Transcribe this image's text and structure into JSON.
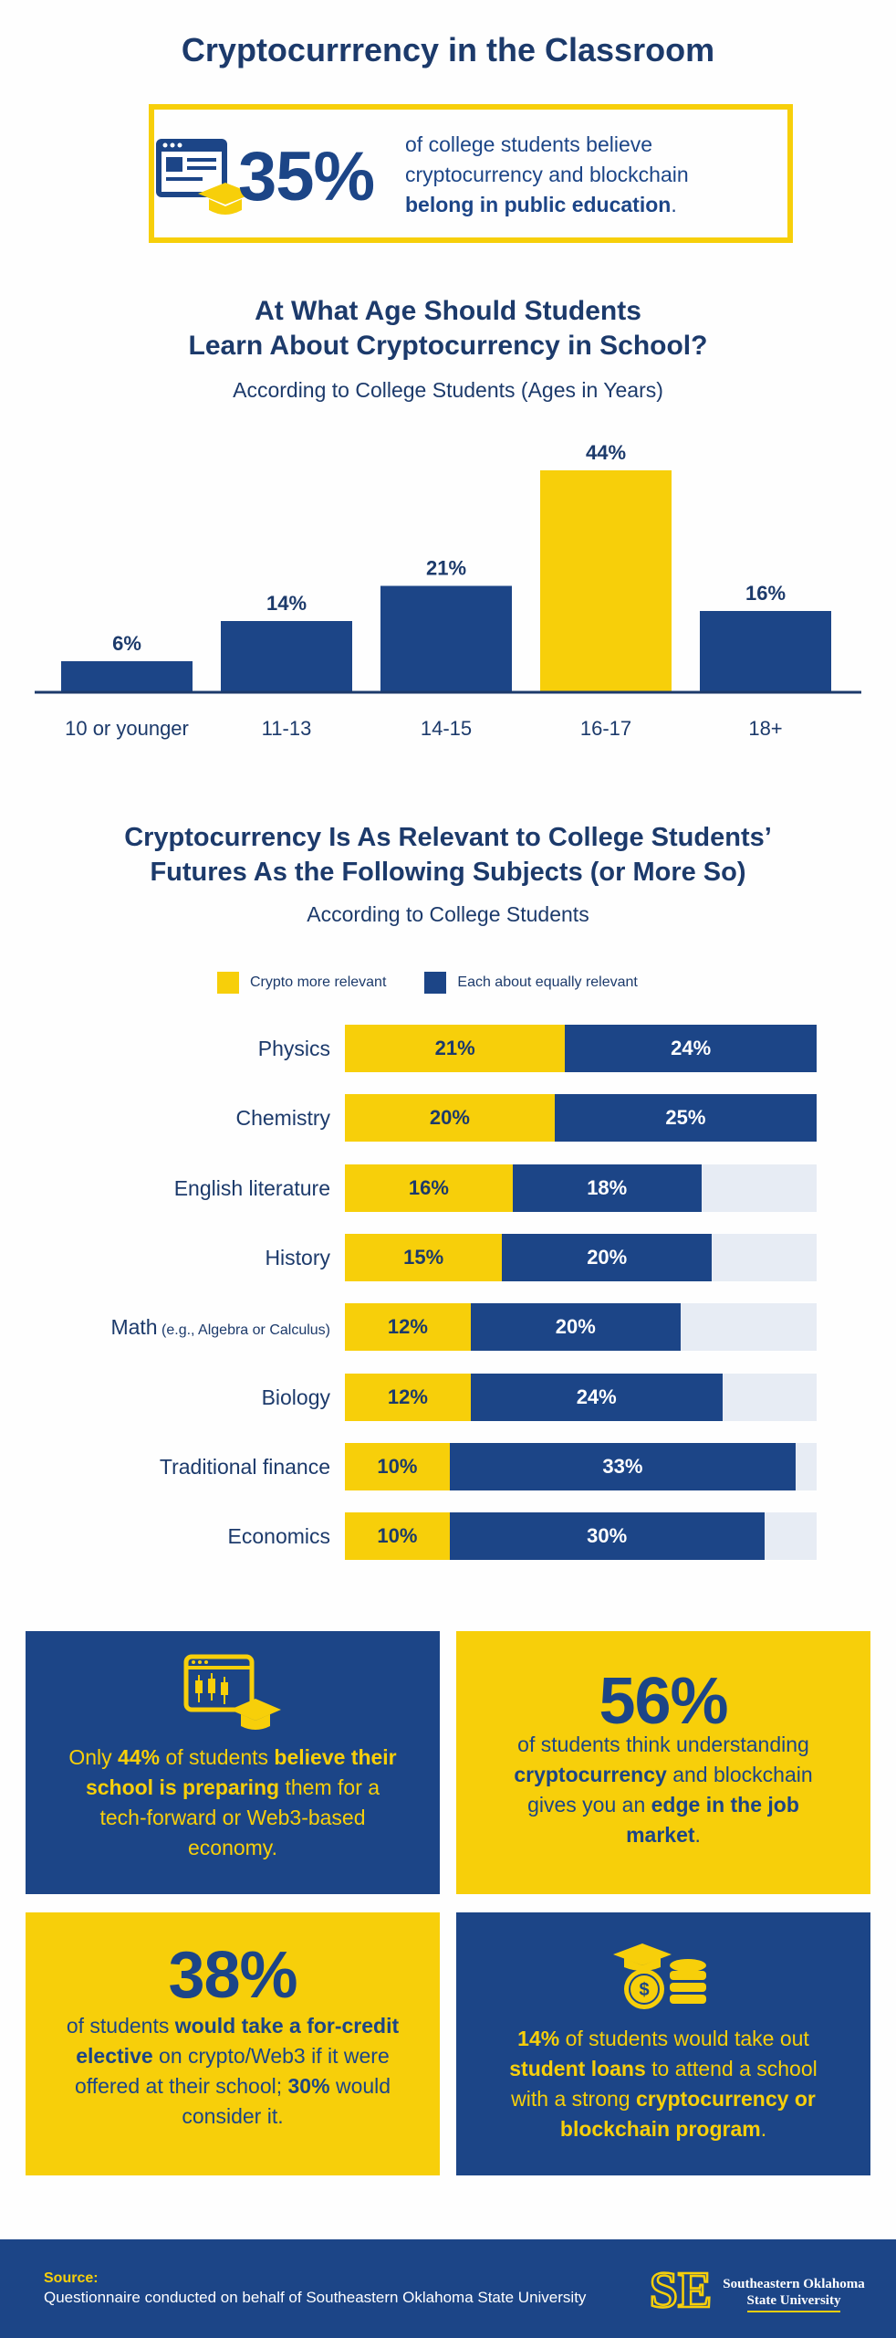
{
  "title": "Cryptocurrrency in the Classroom",
  "stat": {
    "percent": "35%",
    "text_pre": "of college students believe cryptocurrency and blockchain ",
    "text_bold": "belong in public education",
    "text_post": "."
  },
  "colors": {
    "navy": "#1c4587",
    "yellow": "#f7cf0a",
    "track": "#e7ecf4"
  },
  "chart_data": [
    {
      "type": "bar",
      "title_line1": "At What Age Should Students",
      "title_line2": "Learn About Cryptocurrency in School?",
      "subtitle": "According to College Students (Ages in Years)",
      "categories": [
        "10 or younger",
        "11-13",
        "14-15",
        "16-17",
        "18+"
      ],
      "values": [
        6,
        14,
        21,
        44,
        16
      ],
      "labels": [
        "6%",
        "14%",
        "21%",
        "44%",
        "16%"
      ],
      "highlight_index": 3,
      "ylim": [
        0,
        44
      ]
    },
    {
      "type": "bar",
      "orientation": "horizontal-stacked",
      "title_line1": "Cryptocurrency Is As Relevant to College Students’",
      "title_line2": "Futures As the Following Subjects (or More So)",
      "subtitle": "According to College Students",
      "legend": [
        "Crypto more relevant",
        "Each about equally relevant"
      ],
      "categories": [
        "Physics",
        "Chemistry",
        "English literature",
        "History",
        "Math",
        "Biology",
        "Traditional finance",
        "Economics"
      ],
      "category_notes": [
        "",
        "",
        "",
        "",
        "(e.g., Algebra or Calculus)",
        "",
        "",
        ""
      ],
      "series": [
        {
          "name": "Crypto more relevant",
          "values": [
            21,
            20,
            16,
            15,
            12,
            12,
            10,
            10
          ],
          "labels": [
            "21%",
            "20%",
            "16%",
            "15%",
            "12%",
            "12%",
            "10%",
            "10%"
          ]
        },
        {
          "name": "Each about equally relevant",
          "values": [
            24,
            25,
            18,
            20,
            20,
            24,
            33,
            30
          ],
          "labels": [
            "24%",
            "25%",
            "18%",
            "20%",
            "20%",
            "24%",
            "33%",
            "30%"
          ]
        }
      ],
      "xlim": [
        0,
        45
      ]
    }
  ],
  "cards": {
    "card1": {
      "t1": "Only ",
      "t2": "44%",
      "t3": " of students ",
      "t4": "believe their school is preparing",
      "t5": " them for a tech-forward or Web3-based economy."
    },
    "card2": {
      "percent": "56%",
      "t1": "of students think understanding ",
      "t2": "cryptocurrency",
      "t3": " and blockchain gives you an ",
      "t4": "edge in the job market",
      "t5": "."
    },
    "card3": {
      "percent": "38%",
      "t1": "of students ",
      "t2": "would take a for-credit elective",
      "t3": " on crypto/Web3 if it were offered at their school; ",
      "t4": "30%",
      "t5": " would consider it."
    },
    "card4": {
      "t1": "14%",
      "t2": " of students would take out ",
      "t3": "student loans",
      "t4": " to attend a school with a strong ",
      "t5": "cryptocurrency or blockchain program",
      "t6": "."
    }
  },
  "footer": {
    "source_label": "Source:",
    "source_text": "Questionnaire conducted on behalf of Southeastern Oklahoma State University",
    "logo_mark": "SE",
    "university_line1": "Southeastern Oklahoma",
    "university_line2": "State University"
  }
}
